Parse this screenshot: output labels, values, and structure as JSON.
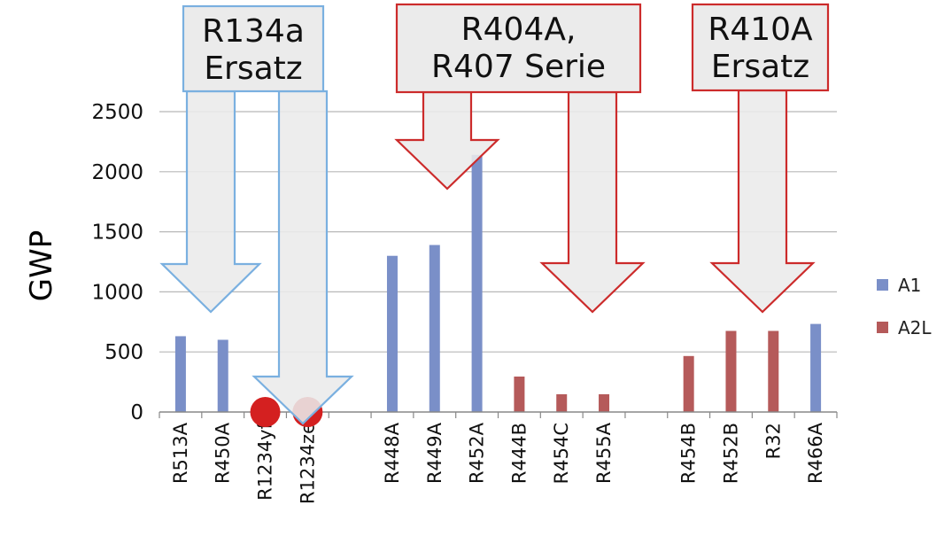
{
  "chart_data": {
    "type": "bar",
    "ylabel": "GWP",
    "xlabel": "",
    "ylim": [
      0,
      2500
    ],
    "yticks": [
      0,
      500,
      1000,
      1500,
      2000,
      2500
    ],
    "grid": true,
    "legend_position": "right",
    "categories": [
      "R513A",
      "R450A",
      "R1234yf",
      "R1234ze",
      "",
      "R448A",
      "R449A",
      "R452A",
      "R444B",
      "R454C",
      "R455A",
      "",
      "R454B",
      "R452B",
      "R32",
      "R466A"
    ],
    "series": [
      {
        "name": "A1",
        "color": "#7a8fc8",
        "values": [
          631,
          601,
          null,
          null,
          null,
          1300,
          1390,
          2140,
          null,
          null,
          null,
          null,
          null,
          null,
          null,
          733
        ]
      },
      {
        "name": "A2L",
        "color": "#b55a5a",
        "values": [
          null,
          null,
          null,
          null,
          null,
          null,
          null,
          null,
          295,
          148,
          148,
          null,
          466,
          675,
          675,
          null
        ]
      }
    ],
    "markers": [
      {
        "category": "R1234yf",
        "value": 0,
        "shape": "circle",
        "color": "#d42020"
      },
      {
        "category": "R1234ze",
        "value": 0,
        "shape": "circle",
        "color": "#d42020"
      }
    ],
    "annotations": [
      {
        "lines": [
          "R134a",
          "Ersatz"
        ],
        "color": "#7ab0e0",
        "targets": [
          "R513A",
          "R450A",
          "R1234yf",
          "R1234ze"
        ]
      },
      {
        "lines": [
          "R404A,",
          "R407 Serie"
        ],
        "color": "#cc2b2b",
        "targets": [
          "R448A",
          "R449A",
          "R452A",
          "R444B",
          "R454C",
          "R455A"
        ]
      },
      {
        "lines": [
          "R410A",
          "Ersatz"
        ],
        "color": "#cc2b2b",
        "targets": [
          "R454B",
          "R452B",
          "R32",
          "R466A"
        ]
      }
    ]
  }
}
